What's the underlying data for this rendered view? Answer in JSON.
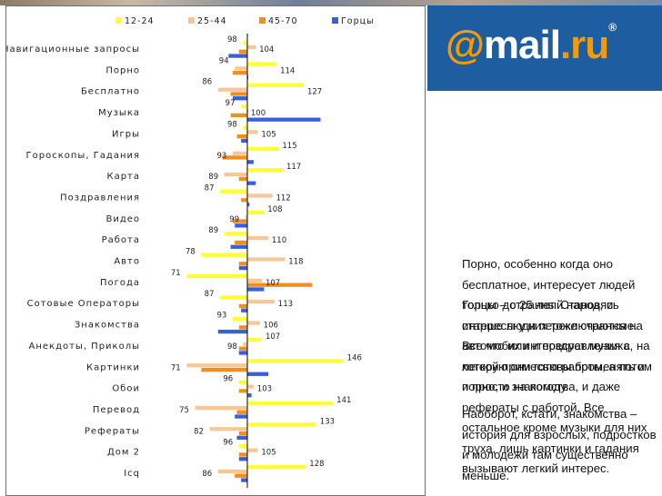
{
  "chart_data": {
    "type": "bar",
    "orientation": "horizontal",
    "baseline": 100,
    "legend_position": "top",
    "grid": false,
    "categories": [
      "Навигационные запросы",
      "Порно",
      "Бесплатно",
      "Музыка",
      "Игры",
      "Гороскопы, Гадания",
      "Карта",
      "Поздравления",
      "Видео",
      "Работа",
      "Авто",
      "Погода",
      "Сотовые Операторы",
      "Знакомства",
      "Анекдоты, Приколы",
      "Картинки",
      "Обои",
      "Перевод",
      "Рефераты",
      "Дом 2",
      "Icq"
    ],
    "series": [
      {
        "name": "12-24",
        "color": "#ffff33",
        "values": [
          98,
          114,
          127,
          97,
          98,
          115,
          117,
          87,
          108,
          89,
          78,
          71,
          87,
          93,
          107,
          146,
          96,
          141,
          133,
          96,
          128
        ]
      },
      {
        "name": "25-44",
        "color": "#f5c89a",
        "values": [
          104,
          94,
          86,
          100,
          105,
          93,
          89,
          112,
          99,
          110,
          118,
          107,
          113,
          106,
          98,
          71,
          103,
          75,
          82,
          105,
          86
        ]
      },
      {
        "name": "45-70",
        "color": "#f28f1c",
        "values": [
          96,
          93,
          92,
          92,
          95,
          88,
          96,
          97,
          93,
          94,
          96,
          131,
          96,
          96,
          96,
          78,
          96,
          95,
          96,
          96,
          94
        ]
      },
      {
        "name": "Горцы",
        "color": "#3a5fd9",
        "values": [
          91,
          100,
          93,
          135,
          97,
          103,
          104,
          101,
          94,
          92,
          96,
          108,
          97,
          86,
          96,
          110,
          102,
          94,
          95,
          96,
          97
        ]
      }
    ],
    "labeled_series": "12-24",
    "labels": [
      {
        "text": "98",
        "of": "12-24"
      },
      {
        "text": "104",
        "of": "25-44"
      },
      {
        "text": "94",
        "of": "25-44"
      },
      {
        "text": "114",
        "of": "12-24"
      },
      {
        "text": "86",
        "of": "25-44"
      },
      {
        "text": "127",
        "of": "12-24"
      },
      {
        "text": "97",
        "of": "12-24"
      },
      {
        "text": "100",
        "of": "25-44"
      },
      {
        "text": "98",
        "of": "12-24"
      },
      {
        "text": "105",
        "of": "25-44"
      },
      {
        "text": "115",
        "of": "12-24"
      },
      {
        "text": "93",
        "of": "25-44"
      },
      {
        "text": "117",
        "of": "12-24"
      },
      {
        "text": "89",
        "of": "25-44"
      },
      {
        "text": "87",
        "of": "12-24"
      },
      {
        "text": "112",
        "of": "25-44"
      },
      {
        "text": "108",
        "of": "12-24"
      },
      {
        "text": "99",
        "of": "25-44"
      },
      {
        "text": "89",
        "of": "12-24"
      },
      {
        "text": "110",
        "of": "25-44"
      },
      {
        "text": "78",
        "of": "12-24"
      },
      {
        "text": "118",
        "of": "25-44"
      },
      {
        "text": "71",
        "of": "12-24"
      },
      {
        "text": "107",
        "of": "25-44"
      },
      {
        "text": "87",
        "of": "12-24"
      },
      {
        "text": "113",
        "of": "25-44"
      },
      {
        "text": "93",
        "of": "12-24"
      },
      {
        "text": "106",
        "of": "25-44"
      },
      {
        "text": "107",
        "of": "12-24"
      },
      {
        "text": "98",
        "of": "25-44"
      },
      {
        "text": "146",
        "of": "12-24"
      },
      {
        "text": "71",
        "of": "25-44"
      },
      {
        "text": "96",
        "of": "12-24"
      },
      {
        "text": "103",
        "of": "25-44"
      },
      {
        "text": "141",
        "of": "12-24"
      },
      {
        "text": "75",
        "of": "25-44"
      },
      {
        "text": "133",
        "of": "12-24"
      },
      {
        "text": "82",
        "of": "25-44"
      },
      {
        "text": "96",
        "of": "12-24"
      },
      {
        "text": "105",
        "of": "25-44"
      },
      {
        "text": "128",
        "of": "12-24"
      },
      {
        "text": "86",
        "of": "25-44"
      }
    ]
  },
  "logo": {
    "at": "@",
    "brand": "mail",
    "tld": ".ru",
    "registered": "®"
  },
  "notes": [
    "Порно, особенно когда оно бесплатное, интересует людей только до 25 лет. Становясь старше люди переключаются на автомобили и поздравления с легкой примесью работы, а потом и просто на погоду.",
    "Горцы – странный народ, и интересы у них тоже странные. Все что их интересует музыка, на которую они готовы променять и порно, и знакомства, и даже рефераты с работой. Все остальное кроме музыки для них труха, лишь картинки и гадания вызывают легкий интерес.",
    "Наоборот, кстати, знакомства – история для взрослых, подростков и молодежи там существенно меньше."
  ]
}
